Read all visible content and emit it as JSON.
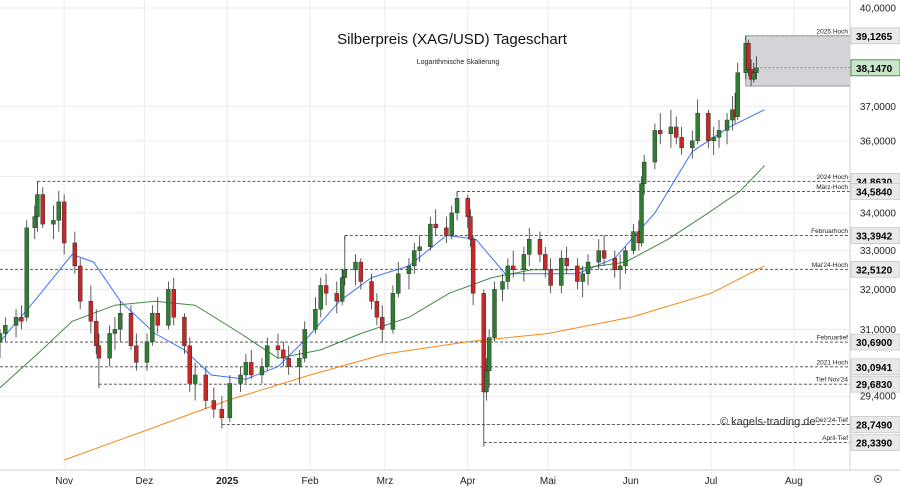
{
  "colors": {
    "up": "#2e7d32",
    "down": "#c62828",
    "ma20": "#2962ff",
    "ma50": "#2e7d32",
    "ma200": "#f57c00",
    "box": "#d3d3d8",
    "level_box": "#e6e6e6"
  },
  "chart_data": {
    "type": "candlestick",
    "title": "Silberpreis (XAG/USD) Tageschart",
    "subtitle": "Logarithmische Skalierung",
    "watermark": "© kagels-trading.de",
    "y_scale": "log",
    "ylim": [
      27.95,
      40.0
    ],
    "y_ticks": [
      {
        "v": 40.0,
        "label": "40,0000"
      },
      {
        "v": 37.0,
        "label": "37,0000"
      },
      {
        "v": 36.0,
        "label": "36,0000"
      },
      {
        "v": 35.0,
        "label": "35,0000"
      },
      {
        "v": 34.0,
        "label": "34,0000"
      },
      {
        "v": 33.0,
        "label": "33,0000"
      },
      {
        "v": 32.0,
        "label": "32,0000"
      },
      {
        "v": 31.0,
        "label": "31,0000"
      },
      {
        "v": 29.4,
        "label": "29,4000"
      }
    ],
    "x_labels": [
      {
        "date": "2024-11-01",
        "label": "Nov",
        "bold": false
      },
      {
        "date": "2024-12-01",
        "label": "Dez",
        "bold": false
      },
      {
        "date": "2025-01-01",
        "label": "2025",
        "bold": true
      },
      {
        "date": "2025-02-01",
        "label": "Feb",
        "bold": false
      },
      {
        "date": "2025-03-01",
        "label": "Mrz",
        "bold": false
      },
      {
        "date": "2025-04-01",
        "label": "Apr",
        "bold": false
      },
      {
        "date": "2025-05-01",
        "label": "Mai",
        "bold": false
      },
      {
        "date": "2025-06-01",
        "label": "Jun",
        "bold": false
      },
      {
        "date": "2025-07-01",
        "label": "Jul",
        "bold": false
      },
      {
        "date": "2025-08-01",
        "label": "Aug",
        "bold": false
      }
    ],
    "x_range": [
      "2024-10-08",
      "2025-08-22"
    ],
    "levels": [
      {
        "value": 39.1265,
        "label": "39,1265",
        "name": "2025 Hoch",
        "start": "2025-07-14"
      },
      {
        "value": 34.863,
        "label": "34,8630",
        "name": "2024 Hoch",
        "start": "2024-10-22"
      },
      {
        "value": 34.584,
        "label": "34,5840",
        "name": "März-Hoch",
        "start": "2025-03-28"
      },
      {
        "value": 33.3942,
        "label": "33,3942",
        "name": "Februarhoch",
        "start": "2025-02-14"
      },
      {
        "value": 32.512,
        "label": "32,5120",
        "name": "Mai'24-Hoch",
        "start": "2024-10-08"
      },
      {
        "value": 30.69,
        "label": "30,6900",
        "name": "Februartief",
        "start": "2024-10-08"
      },
      {
        "value": 30.0941,
        "label": "30,0941",
        "name": "2021 Hoch",
        "start": "2024-10-08"
      },
      {
        "value": 29.683,
        "label": "29,6830",
        "name": "Tief Nov'24",
        "start": "2024-11-14"
      },
      {
        "value": 28.749,
        "label": "28,7490",
        "name": "Dez'24-Tief",
        "start": "2024-12-30"
      },
      {
        "value": 28.339,
        "label": "28,3390",
        "name": "April-Tief",
        "start": "2025-04-07"
      }
    ],
    "last_price": {
      "value": 38.147,
      "label": "38,1470"
    },
    "resistance_zone": {
      "from": "2025-07-14",
      "high": 39.1265,
      "low": 37.6
    },
    "series": [
      {
        "name": "",
        "kind": "ma20",
        "points": [
          [
            "2024-10-08",
            30.7
          ],
          [
            "2024-10-22",
            31.8
          ],
          [
            "2024-11-04",
            32.9
          ],
          [
            "2024-11-12",
            32.7
          ],
          [
            "2024-11-22",
            31.7
          ],
          [
            "2024-12-05",
            30.9
          ],
          [
            "2024-12-16",
            30.5
          ],
          [
            "2024-12-26",
            29.9
          ],
          [
            "2025-01-08",
            29.8
          ],
          [
            "2025-01-20",
            30.1
          ],
          [
            "2025-01-31",
            30.8
          ],
          [
            "2025-02-12",
            31.7
          ],
          [
            "2025-02-24",
            32.3
          ],
          [
            "2025-03-10",
            32.6
          ],
          [
            "2025-03-24",
            33.4
          ],
          [
            "2025-04-04",
            33.3
          ],
          [
            "2025-04-15",
            32.4
          ],
          [
            "2025-04-28",
            32.4
          ],
          [
            "2025-05-12",
            32.4
          ],
          [
            "2025-05-26",
            32.8
          ],
          [
            "2025-06-10",
            34.0
          ],
          [
            "2025-06-24",
            35.7
          ],
          [
            "2025-07-08",
            36.4
          ],
          [
            "2025-07-21",
            36.9
          ]
        ]
      },
      {
        "name": "",
        "kind": "ma50",
        "points": [
          [
            "2024-10-08",
            29.6
          ],
          [
            "2024-10-22",
            30.4
          ],
          [
            "2024-11-04",
            31.2
          ],
          [
            "2024-11-20",
            31.6
          ],
          [
            "2024-12-05",
            31.7
          ],
          [
            "2024-12-20",
            31.6
          ],
          [
            "2025-01-06",
            30.9
          ],
          [
            "2025-01-20",
            30.3
          ],
          [
            "2025-02-05",
            30.5
          ],
          [
            "2025-02-20",
            30.9
          ],
          [
            "2025-03-10",
            31.3
          ],
          [
            "2025-03-25",
            31.9
          ],
          [
            "2025-04-10",
            32.3
          ],
          [
            "2025-04-25",
            32.5
          ],
          [
            "2025-05-10",
            32.5
          ],
          [
            "2025-05-30",
            32.7
          ],
          [
            "2025-06-15",
            33.3
          ],
          [
            "2025-06-30",
            34.0
          ],
          [
            "2025-07-12",
            34.6
          ],
          [
            "2025-07-21",
            35.3
          ]
        ]
      },
      {
        "name": "",
        "kind": "ma200",
        "points": [
          [
            "2024-11-01",
            27.95
          ],
          [
            "2024-12-01",
            28.6
          ],
          [
            "2025-01-01",
            29.3
          ],
          [
            "2025-02-01",
            29.9
          ],
          [
            "2025-03-01",
            30.4
          ],
          [
            "2025-04-01",
            30.7
          ],
          [
            "2025-05-01",
            30.9
          ],
          [
            "2025-06-01",
            31.3
          ],
          [
            "2025-07-01",
            31.9
          ],
          [
            "2025-07-21",
            32.6
          ]
        ]
      }
    ],
    "candles": [
      [
        "2024-10-08",
        30.7,
        31.0,
        30.3,
        30.9
      ],
      [
        "2024-10-10",
        30.9,
        31.3,
        30.7,
        31.1
      ],
      [
        "2024-10-14",
        31.1,
        31.5,
        30.8,
        31.3
      ],
      [
        "2024-10-16",
        31.3,
        31.6,
        31.0,
        31.2
      ],
      [
        "2024-10-18",
        31.3,
        33.8,
        31.2,
        33.6
      ],
      [
        "2024-10-21",
        33.6,
        34.2,
        33.3,
        33.9
      ],
      [
        "2024-10-22",
        33.9,
        34.86,
        33.5,
        34.5
      ],
      [
        "2024-10-24",
        34.5,
        34.7,
        33.6,
        33.7
      ],
      [
        "2024-10-28",
        33.7,
        34.2,
        33.3,
        33.8
      ],
      [
        "2024-10-30",
        33.8,
        34.6,
        33.5,
        34.3
      ],
      [
        "2024-11-01",
        34.3,
        34.5,
        32.9,
        33.2
      ],
      [
        "2024-11-05",
        33.2,
        33.5,
        32.4,
        32.6
      ],
      [
        "2024-11-07",
        32.6,
        32.8,
        31.5,
        31.7
      ],
      [
        "2024-11-11",
        31.7,
        32.1,
        30.9,
        31.2
      ],
      [
        "2024-11-13",
        31.2,
        31.5,
        30.4,
        30.6
      ],
      [
        "2024-11-14",
        30.6,
        30.9,
        29.68,
        30.3
      ],
      [
        "2024-11-18",
        30.3,
        31.1,
        30.1,
        30.9
      ],
      [
        "2024-11-20",
        30.9,
        31.3,
        30.5,
        31.0
      ],
      [
        "2024-11-22",
        31.0,
        31.7,
        30.7,
        31.4
      ],
      [
        "2024-11-26",
        31.4,
        31.6,
        30.5,
        30.6
      ],
      [
        "2024-11-28",
        30.6,
        30.9,
        30.0,
        30.2
      ],
      [
        "2024-12-02",
        30.2,
        30.9,
        30.0,
        30.7
      ],
      [
        "2024-12-04",
        30.7,
        31.6,
        30.6,
        31.4
      ],
      [
        "2024-12-06",
        31.4,
        31.8,
        30.9,
        31.1
      ],
      [
        "2024-12-10",
        31.1,
        32.2,
        31.0,
        32.0
      ],
      [
        "2024-12-12",
        32.0,
        32.3,
        31.1,
        31.3
      ],
      [
        "2024-12-16",
        31.3,
        31.4,
        30.4,
        30.6
      ],
      [
        "2024-12-18",
        30.6,
        30.8,
        29.5,
        29.7
      ],
      [
        "2024-12-20",
        29.7,
        30.2,
        29.3,
        29.9
      ],
      [
        "2024-12-24",
        29.9,
        30.1,
        29.1,
        29.3
      ],
      [
        "2024-12-27",
        29.3,
        29.6,
        28.9,
        29.1
      ],
      [
        "2024-12-30",
        29.1,
        29.4,
        28.75,
        28.9
      ],
      [
        "2025-01-02",
        28.9,
        29.9,
        28.8,
        29.7
      ],
      [
        "2025-01-06",
        29.7,
        30.1,
        29.5,
        29.9
      ],
      [
        "2025-01-08",
        29.9,
        30.4,
        29.7,
        30.2
      ],
      [
        "2025-01-10",
        30.2,
        30.5,
        29.8,
        29.9
      ],
      [
        "2025-01-14",
        29.9,
        30.3,
        29.7,
        30.1
      ],
      [
        "2025-01-16",
        30.1,
        30.8,
        30.0,
        30.6
      ],
      [
        "2025-01-20",
        30.6,
        30.9,
        30.3,
        30.5
      ],
      [
        "2025-01-22",
        30.5,
        30.7,
        30.1,
        30.3
      ],
      [
        "2025-01-24",
        30.3,
        30.6,
        29.9,
        30.1
      ],
      [
        "2025-01-28",
        30.1,
        30.5,
        29.7,
        30.3
      ],
      [
        "2025-01-30",
        30.3,
        31.2,
        30.2,
        31.0
      ],
      [
        "2025-02-03",
        31.0,
        31.8,
        30.9,
        31.5
      ],
      [
        "2025-02-05",
        31.5,
        32.3,
        31.3,
        32.1
      ],
      [
        "2025-02-07",
        32.1,
        32.4,
        31.6,
        31.9
      ],
      [
        "2025-02-11",
        31.9,
        32.2,
        31.4,
        31.7
      ],
      [
        "2025-02-13",
        31.7,
        32.5,
        31.6,
        32.3
      ],
      [
        "2025-02-14",
        32.3,
        33.39,
        32.1,
        32.5
      ],
      [
        "2025-02-18",
        32.5,
        32.9,
        32.1,
        32.7
      ],
      [
        "2025-02-20",
        32.7,
        32.8,
        32.0,
        32.2
      ],
      [
        "2025-02-24",
        32.2,
        32.4,
        31.5,
        31.7
      ],
      [
        "2025-02-26",
        31.7,
        31.9,
        31.1,
        31.3
      ],
      [
        "2025-02-28",
        31.3,
        31.6,
        30.7,
        31.0
      ],
      [
        "2025-03-04",
        31.0,
        32.1,
        30.9,
        31.9
      ],
      [
        "2025-03-06",
        31.9,
        32.7,
        31.8,
        32.4
      ],
      [
        "2025-03-10",
        32.4,
        32.8,
        32.0,
        32.6
      ],
      [
        "2025-03-12",
        32.6,
        33.2,
        32.4,
        33.0
      ],
      [
        "2025-03-14",
        33.0,
        33.4,
        32.7,
        33.1
      ],
      [
        "2025-03-18",
        33.1,
        33.9,
        33.0,
        33.7
      ],
      [
        "2025-03-20",
        33.7,
        34.1,
        33.4,
        33.6
      ],
      [
        "2025-03-24",
        33.6,
        33.9,
        33.2,
        33.4
      ],
      [
        "2025-03-26",
        33.4,
        34.2,
        33.3,
        34.0
      ],
      [
        "2025-03-28",
        34.0,
        34.58,
        33.8,
        34.4
      ],
      [
        "2025-04-01",
        34.4,
        34.5,
        33.6,
        33.9
      ],
      [
        "2025-04-02",
        33.9,
        34.1,
        33.1,
        33.3
      ],
      [
        "2025-04-03",
        33.3,
        33.4,
        31.6,
        31.9
      ],
      [
        "2025-04-07",
        31.9,
        32.0,
        28.34,
        29.5
      ],
      [
        "2025-04-08",
        29.5,
        30.3,
        29.3,
        30.0
      ],
      [
        "2025-04-09",
        30.0,
        31.0,
        29.6,
        30.8
      ],
      [
        "2025-04-11",
        30.8,
        32.2,
        30.7,
        32.0
      ],
      [
        "2025-04-14",
        32.0,
        32.4,
        31.7,
        32.2
      ],
      [
        "2025-04-16",
        32.2,
        32.8,
        32.0,
        32.6
      ],
      [
        "2025-04-18",
        32.6,
        33.0,
        32.3,
        32.5
      ],
      [
        "2025-04-22",
        32.5,
        33.1,
        32.2,
        32.9
      ],
      [
        "2025-04-24",
        32.9,
        33.6,
        32.6,
        33.3
      ],
      [
        "2025-04-28",
        33.3,
        33.5,
        32.7,
        32.9
      ],
      [
        "2025-04-30",
        32.9,
        33.1,
        32.3,
        32.5
      ],
      [
        "2025-05-02",
        32.5,
        32.8,
        31.9,
        32.1
      ],
      [
        "2025-05-06",
        32.1,
        33.0,
        31.9,
        32.8
      ],
      [
        "2025-05-08",
        32.8,
        33.1,
        32.4,
        32.6
      ],
      [
        "2025-05-12",
        32.6,
        32.8,
        32.0,
        32.2
      ],
      [
        "2025-05-14",
        32.2,
        32.6,
        31.8,
        32.4
      ],
      [
        "2025-05-16",
        32.4,
        32.9,
        32.1,
        32.7
      ],
      [
        "2025-05-20",
        32.7,
        33.3,
        32.5,
        33.0
      ],
      [
        "2025-05-22",
        33.0,
        33.4,
        32.6,
        32.8
      ],
      [
        "2025-05-26",
        32.8,
        33.0,
        32.3,
        32.5
      ],
      [
        "2025-05-28",
        32.5,
        32.9,
        32.0,
        32.6
      ],
      [
        "2025-05-30",
        32.6,
        33.1,
        32.4,
        33.0
      ],
      [
        "2025-06-02",
        33.0,
        33.7,
        32.9,
        33.5
      ],
      [
        "2025-06-04",
        33.5,
        33.8,
        33.0,
        33.2
      ],
      [
        "2025-06-05",
        33.2,
        35.0,
        33.1,
        34.8
      ],
      [
        "2025-06-06",
        34.8,
        35.6,
        34.5,
        35.4
      ],
      [
        "2025-06-10",
        35.4,
        36.5,
        35.2,
        36.3
      ],
      [
        "2025-06-12",
        36.3,
        36.8,
        35.9,
        36.2
      ],
      [
        "2025-06-16",
        36.2,
        36.9,
        35.8,
        36.4
      ],
      [
        "2025-06-18",
        36.4,
        36.7,
        35.9,
        36.1
      ],
      [
        "2025-06-20",
        36.1,
        36.4,
        35.6,
        35.8
      ],
      [
        "2025-06-24",
        35.8,
        36.3,
        35.5,
        36.0
      ],
      [
        "2025-06-26",
        36.0,
        37.2,
        35.9,
        36.8
      ],
      [
        "2025-06-30",
        36.8,
        36.9,
        35.8,
        36.0
      ],
      [
        "2025-07-02",
        36.0,
        36.4,
        35.6,
        36.1
      ],
      [
        "2025-07-04",
        36.1,
        36.6,
        35.8,
        36.3
      ],
      [
        "2025-07-07",
        36.3,
        36.8,
        35.9,
        36.6
      ],
      [
        "2025-07-09",
        36.6,
        37.3,
        36.3,
        36.9
      ],
      [
        "2025-07-10",
        36.9,
        37.4,
        36.5,
        36.7
      ],
      [
        "2025-07-11",
        36.7,
        38.3,
        36.6,
        38.0
      ],
      [
        "2025-07-14",
        38.0,
        39.13,
        37.8,
        38.9
      ],
      [
        "2025-07-15",
        38.9,
        39.0,
        37.9,
        38.1
      ],
      [
        "2025-07-16",
        38.1,
        38.4,
        37.6,
        37.8
      ],
      [
        "2025-07-17",
        37.8,
        38.3,
        37.7,
        38.0
      ],
      [
        "2025-07-18",
        38.0,
        38.5,
        37.8,
        38.15
      ]
    ]
  }
}
